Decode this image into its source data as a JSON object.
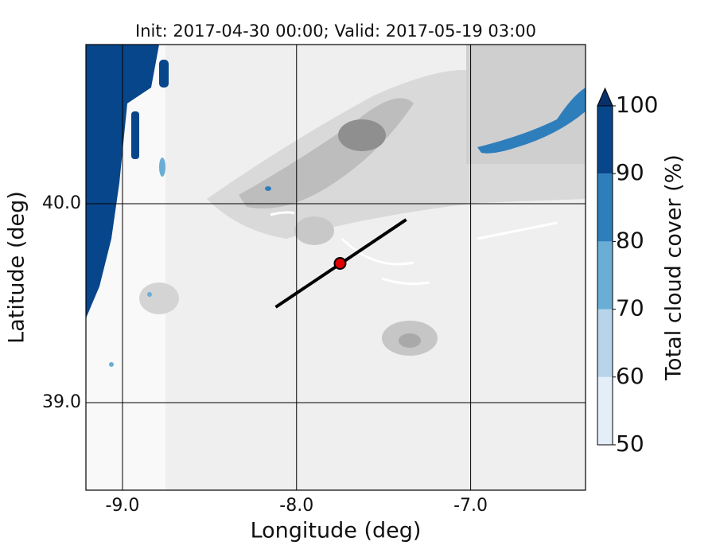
{
  "chart_data": {
    "type": "map",
    "title": "Init: 2017-04-30 00:00; Valid: 2017-05-19 03:00",
    "x_label": "Longitude (deg)",
    "y_label": "Latitude (deg)",
    "xlim": [
      -9.21,
      -6.34
    ],
    "ylim": [
      38.56,
      40.8
    ],
    "xticks": [
      {
        "value": -9,
        "label": "-9.0"
      },
      {
        "value": -8,
        "label": "-8.0"
      },
      {
        "value": -7,
        "label": "-7.0"
      }
    ],
    "yticks": [
      {
        "value": 39,
        "label": "39.0"
      },
      {
        "value": 40,
        "label": "40.0"
      }
    ],
    "grid": true,
    "colorbar": {
      "label": "Total cloud cover (%)",
      "levels": [
        50,
        60,
        70,
        80,
        90,
        100
      ],
      "colors": [
        "#e3eef9",
        "#b7d4ea",
        "#6aaed6",
        "#2e7ebc",
        "#08468b"
      ],
      "extend_color": "#08306b",
      "ticks": [
        50,
        60,
        70,
        80,
        90,
        100
      ]
    },
    "cross_section": {
      "lon": [
        -8.12,
        -7.37
      ],
      "lat": [
        39.48,
        39.92
      ],
      "color": "#000000"
    },
    "point": {
      "lon": -7.75,
      "lat": 39.7,
      "color": "#e00000"
    }
  }
}
